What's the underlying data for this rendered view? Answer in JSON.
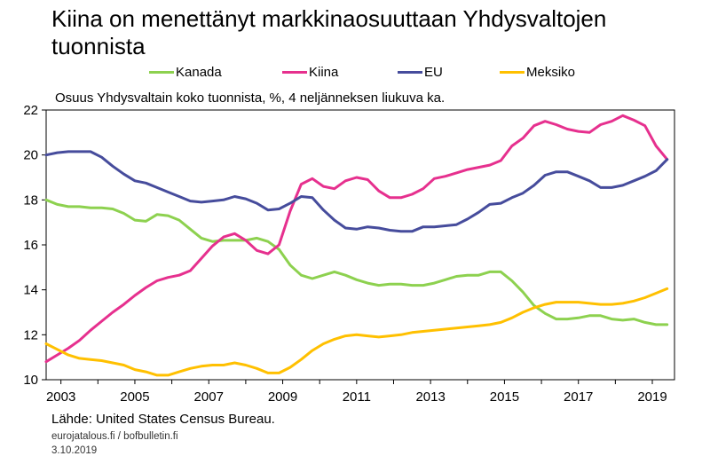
{
  "title_line1": "Kiina on menettänyt markkinaosuuttaan Yhdysvaltojen",
  "title_line2": "tuonnista",
  "subtitle": "Osuus Yhdysvaltain koko tuonnista, %, 4 neljänneksen liukuva ka.",
  "source": "Lähde: United States Census Bureau.",
  "credit": "eurojatalous.fi / bofbulletin.fi",
  "date": "3.10.2019",
  "chart_data": {
    "type": "line",
    "ylim": [
      10,
      22
    ],
    "y_ticks": [
      10,
      12,
      14,
      16,
      18,
      20,
      22
    ],
    "x_tick_labels": [
      "2003",
      "2005",
      "2007",
      "2009",
      "2011",
      "2013",
      "2015",
      "2017",
      "2019"
    ],
    "x_tick_values": [
      2003,
      2005,
      2007,
      2009,
      2011,
      2013,
      2015,
      2017,
      2019
    ],
    "xlim": [
      2002.6,
      2019.6
    ],
    "grid": false,
    "legend_position": "top",
    "series": [
      {
        "name": "Kanada",
        "color": "#8dd14f",
        "points": [
          [
            2002.6,
            18.0
          ],
          [
            2002.9,
            17.8
          ],
          [
            2003.2,
            17.7
          ],
          [
            2003.5,
            17.7
          ],
          [
            2003.8,
            17.65
          ],
          [
            2004.1,
            17.65
          ],
          [
            2004.4,
            17.6
          ],
          [
            2004.7,
            17.4
          ],
          [
            2005.0,
            17.1
          ],
          [
            2005.3,
            17.05
          ],
          [
            2005.6,
            17.35
          ],
          [
            2005.9,
            17.3
          ],
          [
            2006.2,
            17.1
          ],
          [
            2006.5,
            16.7
          ],
          [
            2006.8,
            16.3
          ],
          [
            2007.1,
            16.15
          ],
          [
            2007.4,
            16.2
          ],
          [
            2007.7,
            16.2
          ],
          [
            2008.0,
            16.2
          ],
          [
            2008.3,
            16.3
          ],
          [
            2008.6,
            16.15
          ],
          [
            2008.9,
            15.8
          ],
          [
            2009.2,
            15.1
          ],
          [
            2009.5,
            14.65
          ],
          [
            2009.8,
            14.5
          ],
          [
            2010.1,
            14.65
          ],
          [
            2010.4,
            14.8
          ],
          [
            2010.7,
            14.65
          ],
          [
            2011.0,
            14.45
          ],
          [
            2011.3,
            14.3
          ],
          [
            2011.6,
            14.2
          ],
          [
            2011.9,
            14.25
          ],
          [
            2012.2,
            14.25
          ],
          [
            2012.5,
            14.2
          ],
          [
            2012.8,
            14.2
          ],
          [
            2013.1,
            14.3
          ],
          [
            2013.4,
            14.45
          ],
          [
            2013.7,
            14.6
          ],
          [
            2014.0,
            14.65
          ],
          [
            2014.3,
            14.65
          ],
          [
            2014.6,
            14.8
          ],
          [
            2014.9,
            14.8
          ],
          [
            2015.2,
            14.4
          ],
          [
            2015.5,
            13.9
          ],
          [
            2015.8,
            13.3
          ],
          [
            2016.1,
            12.95
          ],
          [
            2016.4,
            12.7
          ],
          [
            2016.7,
            12.7
          ],
          [
            2017.0,
            12.75
          ],
          [
            2017.3,
            12.85
          ],
          [
            2017.6,
            12.85
          ],
          [
            2017.9,
            12.7
          ],
          [
            2018.2,
            12.65
          ],
          [
            2018.5,
            12.7
          ],
          [
            2018.8,
            12.55
          ],
          [
            2019.1,
            12.45
          ],
          [
            2019.4,
            12.45
          ]
        ]
      },
      {
        "name": "Kiina",
        "color": "#e6308e",
        "points": [
          [
            2002.6,
            10.8
          ],
          [
            2002.9,
            11.1
          ],
          [
            2003.2,
            11.4
          ],
          [
            2003.5,
            11.75
          ],
          [
            2003.8,
            12.2
          ],
          [
            2004.1,
            12.6
          ],
          [
            2004.4,
            13.0
          ],
          [
            2004.7,
            13.35
          ],
          [
            2005.0,
            13.75
          ],
          [
            2005.3,
            14.1
          ],
          [
            2005.6,
            14.4
          ],
          [
            2005.9,
            14.55
          ],
          [
            2006.2,
            14.65
          ],
          [
            2006.5,
            14.85
          ],
          [
            2006.8,
            15.4
          ],
          [
            2007.1,
            15.95
          ],
          [
            2007.4,
            16.35
          ],
          [
            2007.7,
            16.5
          ],
          [
            2008.0,
            16.2
          ],
          [
            2008.3,
            15.75
          ],
          [
            2008.6,
            15.6
          ],
          [
            2008.9,
            16.0
          ],
          [
            2009.2,
            17.5
          ],
          [
            2009.5,
            18.7
          ],
          [
            2009.8,
            18.95
          ],
          [
            2010.1,
            18.6
          ],
          [
            2010.4,
            18.5
          ],
          [
            2010.7,
            18.85
          ],
          [
            2011.0,
            19.0
          ],
          [
            2011.3,
            18.9
          ],
          [
            2011.6,
            18.4
          ],
          [
            2011.9,
            18.1
          ],
          [
            2012.2,
            18.1
          ],
          [
            2012.5,
            18.25
          ],
          [
            2012.8,
            18.5
          ],
          [
            2013.1,
            18.95
          ],
          [
            2013.4,
            19.05
          ],
          [
            2013.7,
            19.2
          ],
          [
            2014.0,
            19.35
          ],
          [
            2014.3,
            19.45
          ],
          [
            2014.6,
            19.55
          ],
          [
            2014.9,
            19.75
          ],
          [
            2015.2,
            20.4
          ],
          [
            2015.5,
            20.75
          ],
          [
            2015.8,
            21.3
          ],
          [
            2016.1,
            21.5
          ],
          [
            2016.4,
            21.35
          ],
          [
            2016.7,
            21.15
          ],
          [
            2017.0,
            21.05
          ],
          [
            2017.3,
            21.0
          ],
          [
            2017.6,
            21.35
          ],
          [
            2017.9,
            21.5
          ],
          [
            2018.2,
            21.75
          ],
          [
            2018.5,
            21.55
          ],
          [
            2018.8,
            21.3
          ],
          [
            2019.1,
            20.4
          ],
          [
            2019.4,
            19.8
          ]
        ]
      },
      {
        "name": "EU",
        "color": "#464c9c",
        "points": [
          [
            2002.6,
            20.0
          ],
          [
            2002.9,
            20.1
          ],
          [
            2003.2,
            20.15
          ],
          [
            2003.5,
            20.15
          ],
          [
            2003.8,
            20.15
          ],
          [
            2004.1,
            19.9
          ],
          [
            2004.4,
            19.5
          ],
          [
            2004.7,
            19.15
          ],
          [
            2005.0,
            18.85
          ],
          [
            2005.3,
            18.75
          ],
          [
            2005.6,
            18.55
          ],
          [
            2005.9,
            18.35
          ],
          [
            2006.2,
            18.15
          ],
          [
            2006.5,
            17.95
          ],
          [
            2006.8,
            17.9
          ],
          [
            2007.1,
            17.95
          ],
          [
            2007.4,
            18.0
          ],
          [
            2007.7,
            18.15
          ],
          [
            2008.0,
            18.05
          ],
          [
            2008.3,
            17.85
          ],
          [
            2008.6,
            17.55
          ],
          [
            2008.9,
            17.6
          ],
          [
            2009.2,
            17.85
          ],
          [
            2009.5,
            18.15
          ],
          [
            2009.8,
            18.1
          ],
          [
            2010.1,
            17.55
          ],
          [
            2010.4,
            17.1
          ],
          [
            2010.7,
            16.75
          ],
          [
            2011.0,
            16.7
          ],
          [
            2011.3,
            16.8
          ],
          [
            2011.6,
            16.75
          ],
          [
            2011.9,
            16.65
          ],
          [
            2012.2,
            16.6
          ],
          [
            2012.5,
            16.6
          ],
          [
            2012.8,
            16.8
          ],
          [
            2013.1,
            16.8
          ],
          [
            2013.4,
            16.85
          ],
          [
            2013.7,
            16.9
          ],
          [
            2014.0,
            17.15
          ],
          [
            2014.3,
            17.45
          ],
          [
            2014.6,
            17.8
          ],
          [
            2014.9,
            17.85
          ],
          [
            2015.2,
            18.1
          ],
          [
            2015.5,
            18.3
          ],
          [
            2015.8,
            18.65
          ],
          [
            2016.1,
            19.1
          ],
          [
            2016.4,
            19.25
          ],
          [
            2016.7,
            19.25
          ],
          [
            2017.0,
            19.05
          ],
          [
            2017.3,
            18.85
          ],
          [
            2017.6,
            18.55
          ],
          [
            2017.9,
            18.55
          ],
          [
            2018.2,
            18.65
          ],
          [
            2018.5,
            18.85
          ],
          [
            2018.8,
            19.05
          ],
          [
            2019.1,
            19.3
          ],
          [
            2019.4,
            19.8
          ]
        ]
      },
      {
        "name": "Meksiko",
        "color": "#ffc000",
        "points": [
          [
            2002.6,
            11.6
          ],
          [
            2002.9,
            11.35
          ],
          [
            2003.2,
            11.1
          ],
          [
            2003.5,
            10.95
          ],
          [
            2003.8,
            10.9
          ],
          [
            2004.1,
            10.85
          ],
          [
            2004.4,
            10.75
          ],
          [
            2004.7,
            10.65
          ],
          [
            2005.0,
            10.45
          ],
          [
            2005.3,
            10.35
          ],
          [
            2005.6,
            10.2
          ],
          [
            2005.9,
            10.2
          ],
          [
            2006.2,
            10.35
          ],
          [
            2006.5,
            10.5
          ],
          [
            2006.8,
            10.6
          ],
          [
            2007.1,
            10.65
          ],
          [
            2007.4,
            10.65
          ],
          [
            2007.7,
            10.75
          ],
          [
            2008.0,
            10.65
          ],
          [
            2008.3,
            10.5
          ],
          [
            2008.6,
            10.3
          ],
          [
            2008.9,
            10.3
          ],
          [
            2009.2,
            10.55
          ],
          [
            2009.5,
            10.9
          ],
          [
            2009.8,
            11.3
          ],
          [
            2010.1,
            11.6
          ],
          [
            2010.4,
            11.8
          ],
          [
            2010.7,
            11.95
          ],
          [
            2011.0,
            12.0
          ],
          [
            2011.3,
            11.95
          ],
          [
            2011.6,
            11.9
          ],
          [
            2011.9,
            11.95
          ],
          [
            2012.2,
            12.0
          ],
          [
            2012.5,
            12.1
          ],
          [
            2012.8,
            12.15
          ],
          [
            2013.1,
            12.2
          ],
          [
            2013.4,
            12.25
          ],
          [
            2013.7,
            12.3
          ],
          [
            2014.0,
            12.35
          ],
          [
            2014.3,
            12.4
          ],
          [
            2014.6,
            12.45
          ],
          [
            2014.9,
            12.55
          ],
          [
            2015.2,
            12.75
          ],
          [
            2015.5,
            13.0
          ],
          [
            2015.8,
            13.2
          ],
          [
            2016.1,
            13.35
          ],
          [
            2016.4,
            13.45
          ],
          [
            2016.7,
            13.45
          ],
          [
            2017.0,
            13.45
          ],
          [
            2017.3,
            13.4
          ],
          [
            2017.6,
            13.35
          ],
          [
            2017.9,
            13.35
          ],
          [
            2018.2,
            13.4
          ],
          [
            2018.5,
            13.5
          ],
          [
            2018.8,
            13.65
          ],
          [
            2019.1,
            13.85
          ],
          [
            2019.4,
            14.05
          ]
        ]
      }
    ]
  }
}
